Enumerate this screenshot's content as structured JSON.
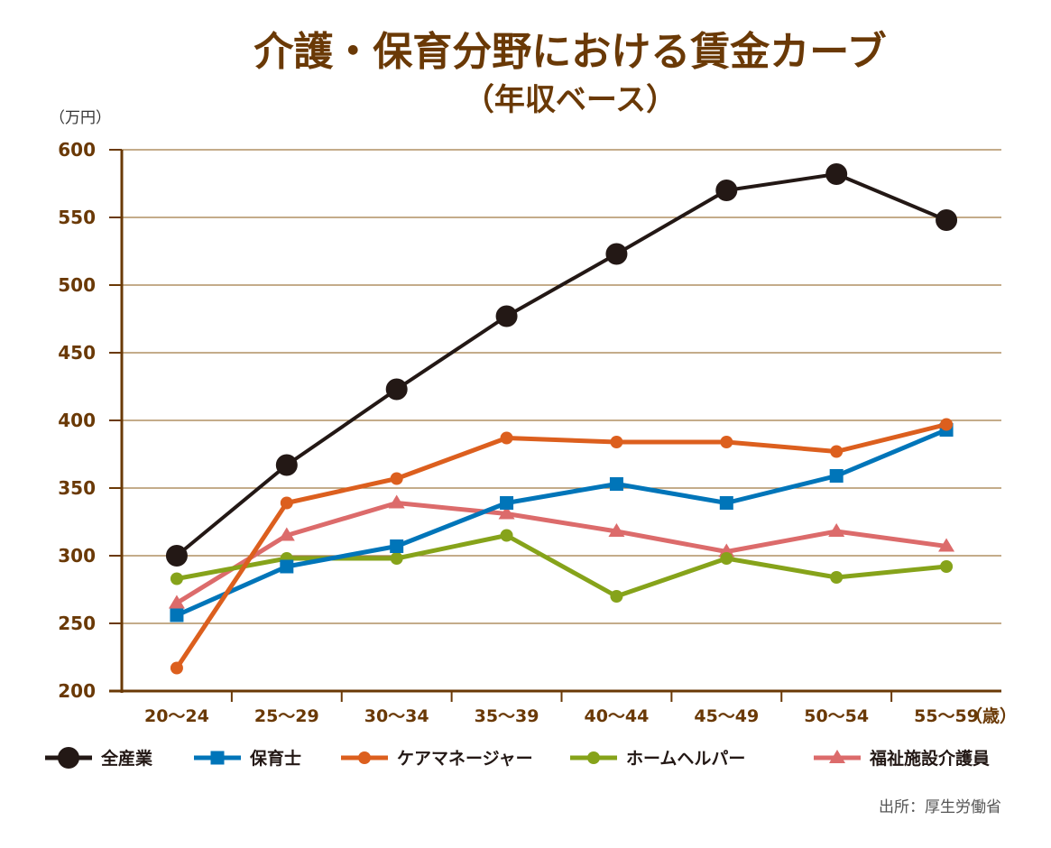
{
  "chart_data": {
    "type": "line",
    "title": "介護・保育分野における賃金カーブ",
    "subtitle": "（年収ベース）",
    "ylabel": "（万円）",
    "xunit": "（歳）",
    "ylim": [
      200,
      600
    ],
    "yticks": [
      200,
      250,
      300,
      350,
      400,
      450,
      500,
      550,
      600
    ],
    "grid": true,
    "legend_placement": "bottom",
    "categories": [
      "20〜24",
      "25〜29",
      "30〜34",
      "35〜39",
      "40〜44",
      "45〜49",
      "50〜54",
      "55〜59"
    ],
    "series": [
      {
        "name": "全産業",
        "color": "#231815",
        "marker": "circle-large",
        "values": [
          300,
          367,
          423,
          477,
          523,
          570,
          582,
          548
        ]
      },
      {
        "name": "保育士",
        "color": "#0075b9",
        "marker": "square",
        "values": [
          256,
          292,
          307,
          339,
          353,
          339,
          359,
          393
        ]
      },
      {
        "name": "ケアマネージャー",
        "color": "#dc5f1e",
        "marker": "circle",
        "values": [
          217,
          339,
          357,
          387,
          384,
          384,
          377,
          397
        ]
      },
      {
        "name": "ホームヘルパー",
        "color": "#86a31a",
        "marker": "circle",
        "values": [
          283,
          298,
          298,
          315,
          270,
          298,
          284,
          292
        ]
      },
      {
        "name": "福祉施設介護員",
        "color": "#dc6b6b",
        "marker": "triangle",
        "values": [
          265,
          315,
          339,
          331,
          318,
          303,
          318,
          307
        ]
      }
    ],
    "source": "出所：厚生労働省",
    "colors": {
      "title": "#6a3906",
      "axis": "#6a3906",
      "grid": "#a07a45",
      "tick_label": "#6a3906"
    }
  }
}
